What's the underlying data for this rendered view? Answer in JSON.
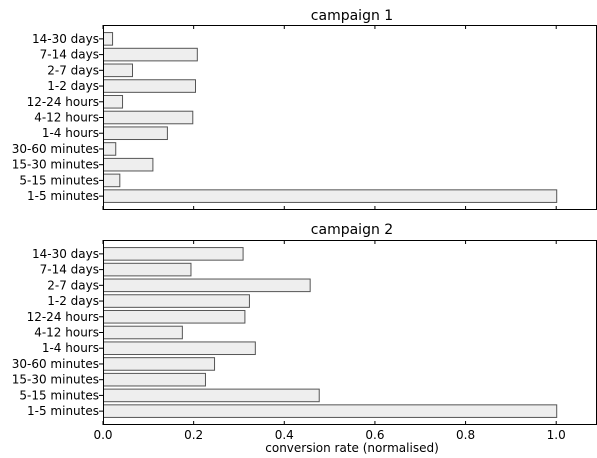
{
  "chart_data": [
    {
      "type": "bar",
      "orientation": "horizontal",
      "title": "campaign 1",
      "categories": [
        "14-30 days",
        "7-14 days",
        "2-7 days",
        "1-2 days",
        "12-24 hours",
        "4-12 hours",
        "1-4 hours",
        "30-60 minutes",
        "15-30 minutes",
        "5-15 minutes",
        "1-5 minutes"
      ],
      "values": [
        0.02,
        0.207,
        0.064,
        0.203,
        0.042,
        0.197,
        0.141,
        0.027,
        0.109,
        0.036,
        1.0
      ],
      "xlim": [
        0,
        1.09
      ],
      "xticks_shown": false,
      "bar_color": "#eeeeee",
      "edge_color": "#555555",
      "grid": false
    },
    {
      "type": "bar",
      "orientation": "horizontal",
      "title": "campaign 2",
      "categories": [
        "14-30 days",
        "7-14 days",
        "2-7 days",
        "1-2 days",
        "12-24 hours",
        "4-12 hours",
        "1-4 hours",
        "30-60 minutes",
        "15-30 minutes",
        "5-15 minutes",
        "1-5 minutes"
      ],
      "values": [
        0.308,
        0.193,
        0.456,
        0.322,
        0.312,
        0.174,
        0.335,
        0.245,
        0.225,
        0.476,
        1.0
      ],
      "xlim": [
        0,
        1.09
      ],
      "xticks": [
        "0.0",
        "0.2",
        "0.4",
        "0.6",
        "0.8",
        "1.0"
      ],
      "xtick_values": [
        0,
        0.2,
        0.4,
        0.6,
        0.8,
        1.0
      ],
      "xlabel": "conversion rate (normalised)",
      "bar_color": "#eeeeee",
      "edge_color": "#555555",
      "grid": false
    }
  ]
}
